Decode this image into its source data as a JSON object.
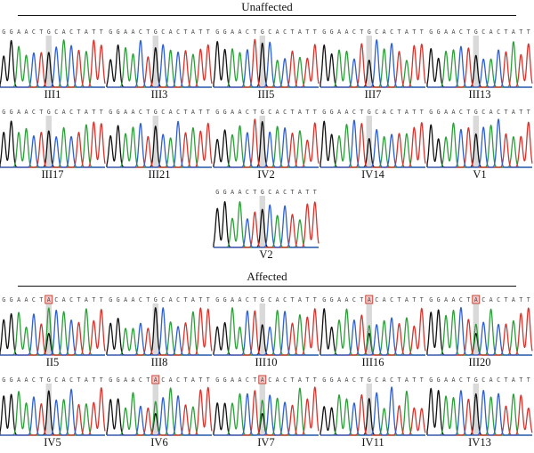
{
  "groups": {
    "unaffected": {
      "title": "Unaffected"
    },
    "affected": {
      "title": "Affected"
    }
  },
  "reference_sequence": "GGAACTGCACTATT",
  "mutant_sequence": "GGAACTACACTATT",
  "variant_position": 7,
  "base_colors": {
    "A": "#2e9e3a",
    "C": "#2f5fd0",
    "G": "#111111",
    "T": "#d8342e"
  },
  "highlight_color": "#d9d9d9",
  "mutant_box_color": "#c0392b",
  "samples": [
    {
      "id": "III1",
      "group": "unaffected",
      "sequence": "GGAACTGCACTATT",
      "genotype": "normal"
    },
    {
      "id": "III3",
      "group": "unaffected",
      "sequence": "GGAACTGCACTATT",
      "genotype": "normal"
    },
    {
      "id": "III5",
      "group": "unaffected",
      "sequence": "GGAACTGCACTATT",
      "genotype": "normal"
    },
    {
      "id": "III7",
      "group": "unaffected",
      "sequence": "GGAACTGCACTATT",
      "genotype": "normal"
    },
    {
      "id": "III13",
      "group": "unaffected",
      "sequence": "GGAACTGCACTATT",
      "genotype": "normal"
    },
    {
      "id": "III17",
      "group": "unaffected",
      "sequence": "GGAACTGCACTATT",
      "genotype": "normal"
    },
    {
      "id": "III21",
      "group": "unaffected",
      "sequence": "GGAACTGCACTATT",
      "genotype": "normal"
    },
    {
      "id": "IV2",
      "group": "unaffected",
      "sequence": "GGAACTGCACTATT",
      "genotype": "normal"
    },
    {
      "id": "IV14",
      "group": "unaffected",
      "sequence": "GGAACTGCACTATT",
      "genotype": "normal"
    },
    {
      "id": "V1",
      "group": "unaffected",
      "sequence": "GGAACTGCACTATT",
      "genotype": "normal"
    },
    {
      "id": "V2",
      "group": "unaffected",
      "sequence": "GGAACTGCACTATT",
      "genotype": "normal"
    },
    {
      "id": "II5",
      "group": "affected",
      "sequence": "GGAACTACACTATT",
      "genotype": "mutant"
    },
    {
      "id": "III8",
      "group": "affected",
      "sequence": "GGAACTGCACTATT",
      "genotype": "normal"
    },
    {
      "id": "III10",
      "group": "affected",
      "sequence": "GGAACTGCACTATT",
      "genotype": "normal"
    },
    {
      "id": "III16",
      "group": "affected",
      "sequence": "GGAACTACACTATT",
      "genotype": "mutant"
    },
    {
      "id": "III20",
      "group": "affected",
      "sequence": "GGAACTACACTATT",
      "genotype": "mutant"
    },
    {
      "id": "IV5",
      "group": "affected",
      "sequence": "GGAACTGCACTATT",
      "genotype": "normal"
    },
    {
      "id": "IV6",
      "group": "affected",
      "sequence": "GGAACTACACTATT",
      "genotype": "mutant"
    },
    {
      "id": "IV7",
      "group": "affected",
      "sequence": "GGAACTACACTATT",
      "genotype": "mutant"
    },
    {
      "id": "IV11",
      "group": "affected",
      "sequence": "GGAACTGCACTATT",
      "genotype": "normal"
    },
    {
      "id": "IV13",
      "group": "affected",
      "sequence": "GGAACTGCACTATT",
      "genotype": "normal"
    }
  ]
}
